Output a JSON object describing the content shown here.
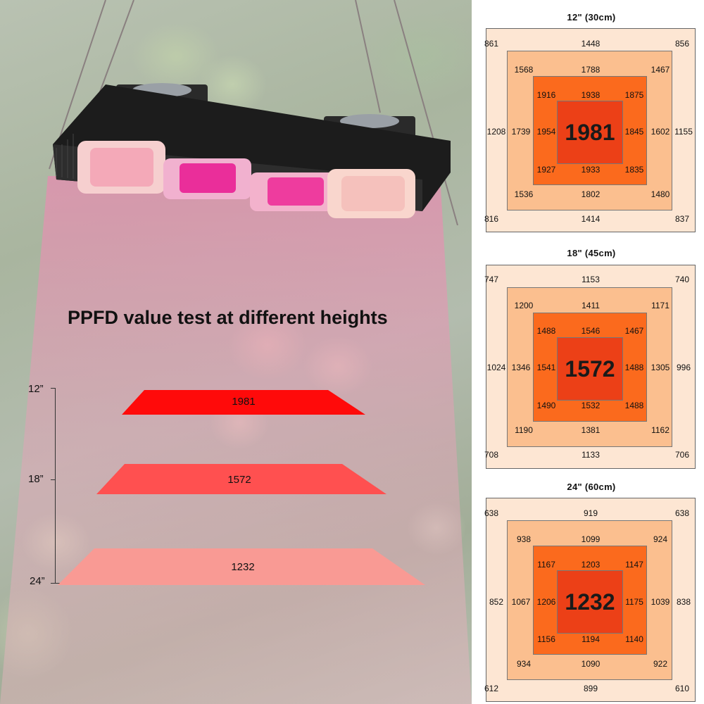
{
  "headline": "PPFD value test at different heights",
  "heights": {
    "h12": "12”",
    "h18": "18”",
    "h24": "24”"
  },
  "bars": [
    {
      "label": "1981",
      "color": "#ff0a0a"
    },
    {
      "label": "1572",
      "color": "#ff5050"
    },
    {
      "label": "1232",
      "color": "#f99a94"
    }
  ],
  "grids": [
    {
      "title": "12\" (30cm)",
      "center": "1981",
      "outer": [
        "861",
        "1448",
        "856",
        "1208",
        "1155",
        "816",
        "1414",
        "837"
      ],
      "middle": [
        "1568",
        "1788",
        "1467",
        "1739",
        "1602",
        "1536",
        "1802",
        "1480"
      ],
      "inner": [
        "1916",
        "1938",
        "1875",
        "1954",
        "1845",
        "1927",
        "1933",
        "1835"
      ]
    },
    {
      "title": "18\" (45cm)",
      "center": "1572",
      "outer": [
        "747",
        "1153",
        "740",
        "1024",
        "996",
        "708",
        "1133",
        "706"
      ],
      "middle": [
        "1200",
        "1411",
        "1171",
        "1346",
        "1305",
        "1190",
        "1381",
        "1162"
      ],
      "inner": [
        "1488",
        "1546",
        "1467",
        "1541",
        "1488",
        "1490",
        "1532",
        "1488"
      ]
    },
    {
      "title": "24\" (60cm)",
      "center": "1232",
      "outer": [
        "638",
        "919",
        "638",
        "852",
        "838",
        "612",
        "899",
        "610"
      ],
      "middle": [
        "938",
        "1099",
        "924",
        "1067",
        "1039",
        "934",
        "1090",
        "922"
      ],
      "inner": [
        "1167",
        "1203",
        "1147",
        "1206",
        "1175",
        "1156",
        "1194",
        "1140"
      ]
    }
  ]
}
